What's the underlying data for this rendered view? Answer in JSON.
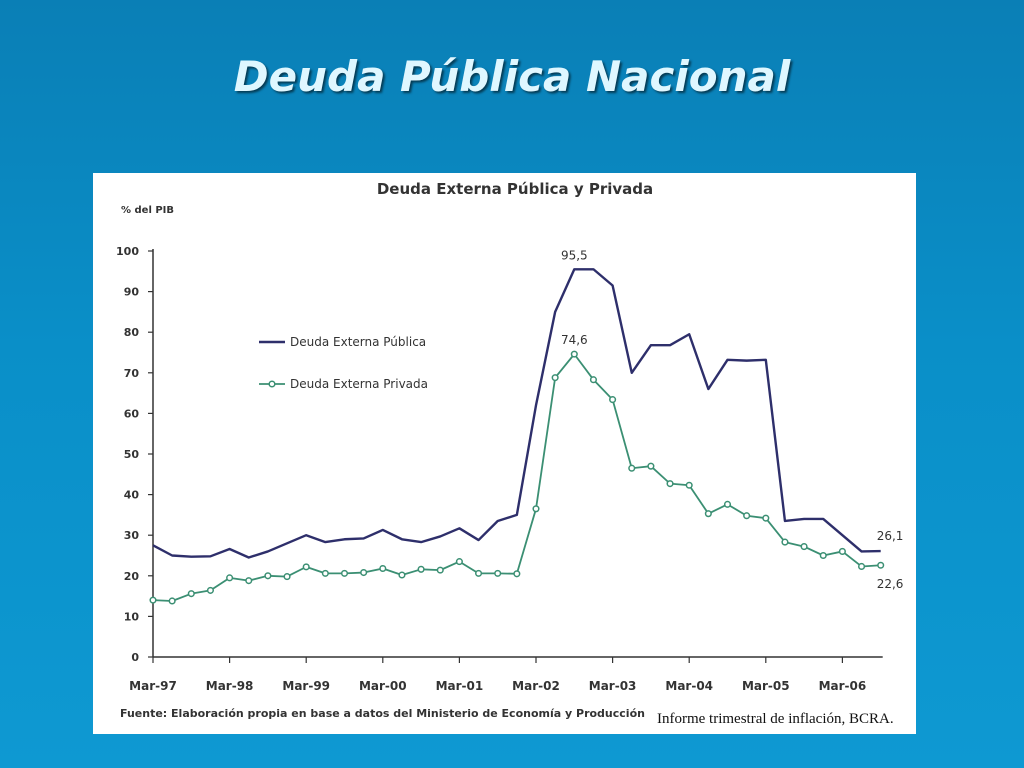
{
  "slide": {
    "title": "Deuda Pública Nacional",
    "citation": "Informe trimestral de inflación, BCRA."
  },
  "colors": {
    "background": "#0a8fc8",
    "title": "#dff7ff",
    "public_series": "#2e2f6b",
    "private_series": "#3b8f73"
  },
  "chart_data": {
    "type": "line",
    "title": "Deuda Externa Pública y Privada",
    "ylabel": "% del PIB",
    "ylim": [
      0,
      100
    ],
    "y_ticks": [
      0,
      10,
      20,
      30,
      40,
      50,
      60,
      70,
      80,
      90,
      100
    ],
    "x_tick_labels": [
      "Mar-97",
      "Mar-98",
      "Mar-99",
      "Mar-00",
      "Mar-01",
      "Mar-02",
      "Mar-03",
      "Mar-04",
      "Mar-05",
      "Mar-06"
    ],
    "x_tick_index": [
      0,
      4,
      8,
      12,
      16,
      20,
      24,
      28,
      32,
      36
    ],
    "source": "Fuente: Elaboración propia en base a datos del Ministerio de Economía y Producción",
    "legend_position": "upper-left",
    "series": [
      {
        "name": "Deuda Externa Pública",
        "markers": false,
        "values": [
          27.5,
          25,
          24.7,
          24.8,
          26.6,
          24.5,
          26,
          28,
          30,
          28.3,
          29,
          29.2,
          31.3,
          29,
          28.3,
          29.7,
          31.7,
          28.8,
          33.5,
          35,
          62,
          85,
          95.5,
          95.5,
          91.5,
          70,
          76.8,
          76.8,
          79.5,
          66,
          73.2,
          73,
          73.2,
          33.5,
          34,
          34,
          30,
          26,
          26.1
        ]
      },
      {
        "name": "Deuda Externa Privada",
        "markers": true,
        "values": [
          14,
          13.8,
          15.6,
          16.4,
          19.5,
          18.8,
          20,
          19.8,
          22.2,
          20.6,
          20.6,
          20.8,
          21.8,
          20.2,
          21.6,
          21.4,
          23.5,
          20.6,
          20.6,
          20.5,
          36.5,
          68.8,
          74.6,
          68.3,
          63.4,
          46.5,
          47,
          42.7,
          42.3,
          35.3,
          37.6,
          34.8,
          34.2,
          28.3,
          27.2,
          25,
          26,
          22.3,
          22.6
        ]
      }
    ],
    "annotations": [
      {
        "text": "95,5",
        "series": 0,
        "index": 22,
        "placement": "above"
      },
      {
        "text": "74,6",
        "series": 1,
        "index": 22,
        "placement": "above"
      },
      {
        "text": "26,1",
        "series": 0,
        "index": 38,
        "placement": "right-above"
      },
      {
        "text": "22,6",
        "series": 1,
        "index": 38,
        "placement": "right-below"
      }
    ]
  }
}
